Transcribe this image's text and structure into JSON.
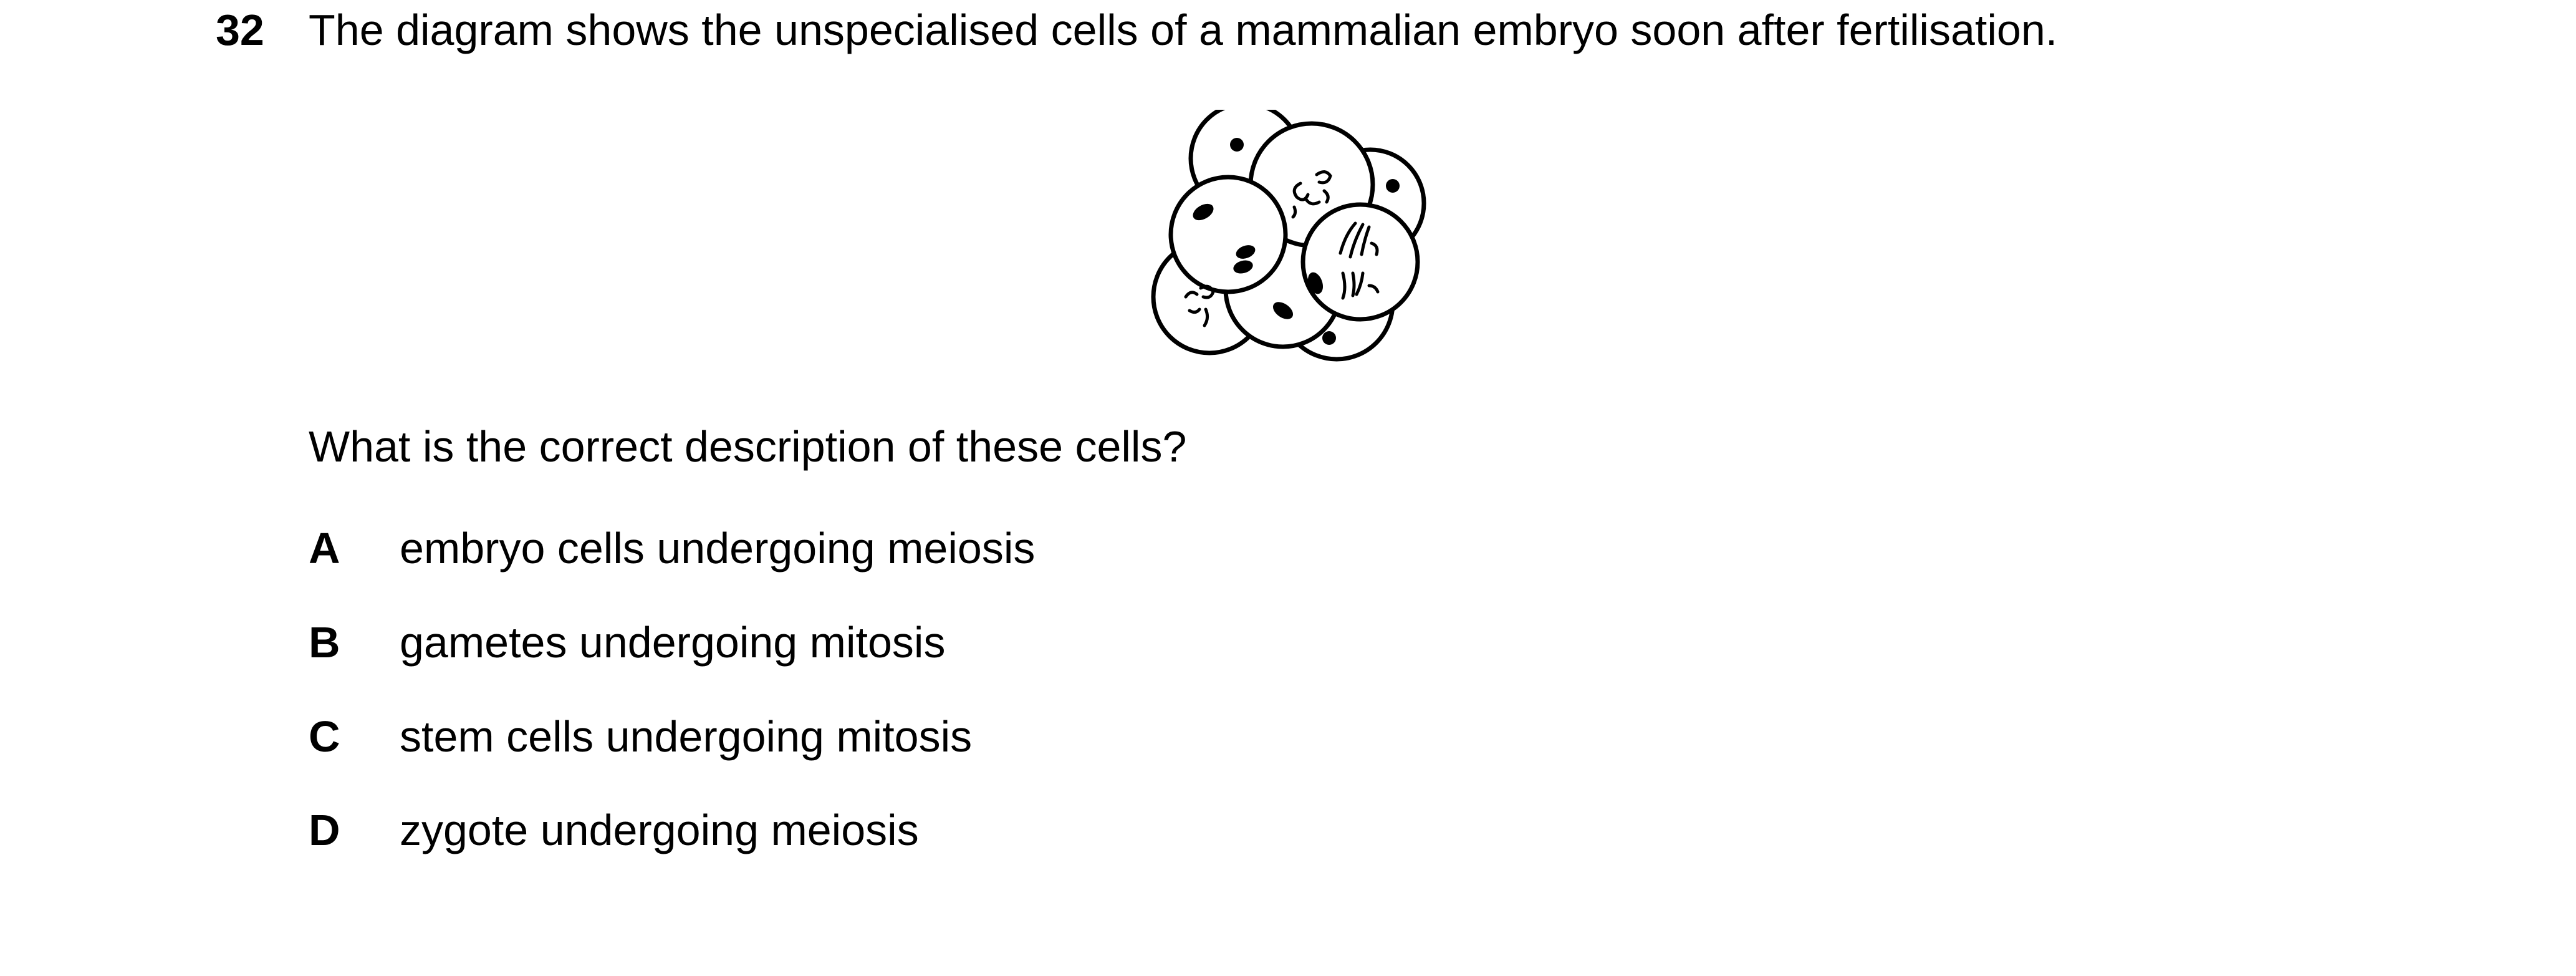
{
  "question": {
    "number": "32",
    "stem": "The diagram shows the unspecialised cells of a mammalian embryo soon after fertilisation.",
    "prompt": "What is the correct description of these cells?"
  },
  "figure": {
    "icon": "embryo-cells-diagram-icon",
    "stroke_color": "#000000",
    "fill_color": "#ffffff"
  },
  "options": [
    {
      "letter": "A",
      "text": "embryo cells undergoing meiosis"
    },
    {
      "letter": "B",
      "text": "gametes undergoing mitosis"
    },
    {
      "letter": "C",
      "text": "stem cells undergoing mitosis"
    },
    {
      "letter": "D",
      "text": "zygote undergoing meiosis"
    }
  ]
}
